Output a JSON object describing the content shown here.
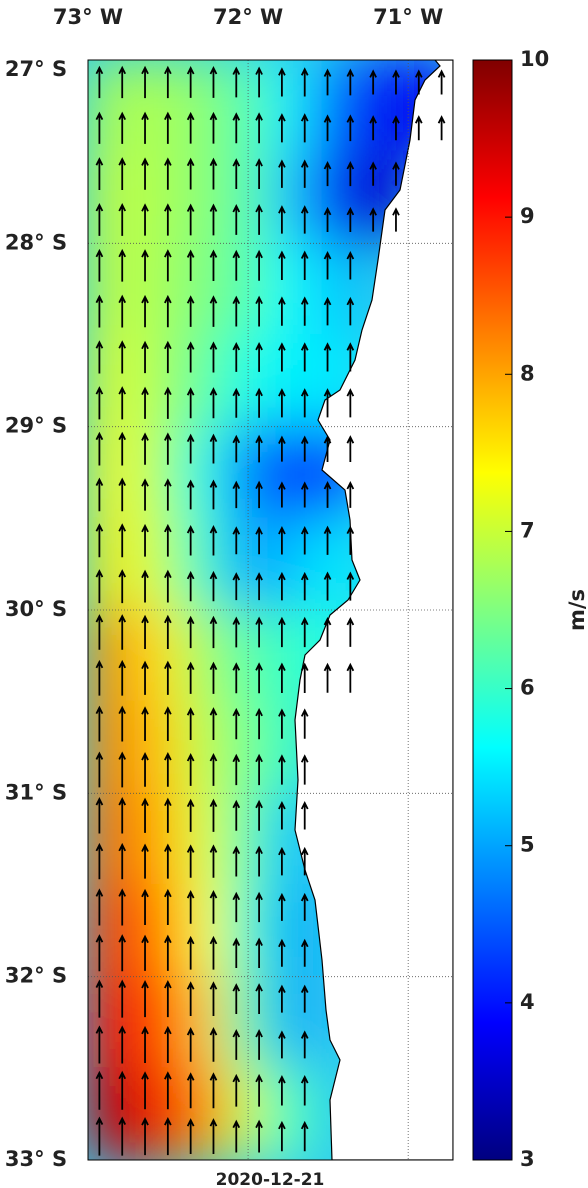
{
  "chart_data": {
    "type": "vector-field-map",
    "date": "2020-12-21",
    "colorbar_label": "m/s",
    "xlim": [
      -73,
      -70.72
    ],
    "ylim": [
      -33,
      -27
    ],
    "xticks": [
      {
        "value": -73,
        "label": "73° W"
      },
      {
        "value": -72,
        "label": "72° W"
      },
      {
        "value": -71,
        "label": "71° W"
      }
    ],
    "yticks": [
      {
        "value": -27,
        "label": "27° S"
      },
      {
        "value": -28,
        "label": "28° S"
      },
      {
        "value": -29,
        "label": "29° S"
      },
      {
        "value": -30,
        "label": "30° S"
      },
      {
        "value": -31,
        "label": "31° S"
      },
      {
        "value": -32,
        "label": "32° S"
      },
      {
        "value": -33,
        "label": "33° S"
      }
    ],
    "clim": [
      3,
      10
    ],
    "cticks": [
      3,
      4,
      5,
      6,
      7,
      8,
      9,
      10
    ],
    "colormap": "jet",
    "grid": true,
    "lon_edges": [
      -73,
      -72.715,
      -72.43,
      -72.145,
      -71.86,
      -71.575,
      -71.29,
      -71.005,
      -70.72
    ],
    "lat_edges": [
      -27,
      -27.5,
      -28,
      -28.5,
      -29,
      -29.5,
      -30,
      -30.5,
      -31,
      -31.5,
      -32,
      -32.5,
      -33
    ],
    "speed": [
      [
        6.8,
        6.8,
        6.6,
        6.2,
        5.5,
        4.5,
        3.8,
        3.8
      ],
      [
        7,
        6.8,
        6.6,
        6.2,
        5.2,
        3.8,
        3.5,
        null
      ],
      [
        7,
        6.8,
        6.5,
        6.2,
        5.6,
        5.2,
        null,
        null
      ],
      [
        7.2,
        6.8,
        6.3,
        5.8,
        5.5,
        5.5,
        null,
        null
      ],
      [
        7.4,
        6.8,
        5.8,
        4.8,
        4.2,
        4.5,
        null,
        null
      ],
      [
        7.5,
        7,
        6,
        5,
        5.2,
        5.5,
        null,
        null
      ],
      [
        8.2,
        7.6,
        6.8,
        6.2,
        6,
        5.8,
        null,
        null
      ],
      [
        8.3,
        7.8,
        7,
        6.4,
        6,
        null,
        null,
        null
      ],
      [
        8.5,
        8,
        7.2,
        6.2,
        5.2,
        null,
        null,
        null
      ],
      [
        8.8,
        8.4,
        7.4,
        6,
        5,
        null,
        null,
        null
      ],
      [
        9.2,
        8.8,
        7.8,
        6.2,
        5,
        null,
        null,
        null
      ],
      [
        9.6,
        9.2,
        8.3,
        7,
        6,
        null,
        null,
        null
      ]
    ]
  }
}
